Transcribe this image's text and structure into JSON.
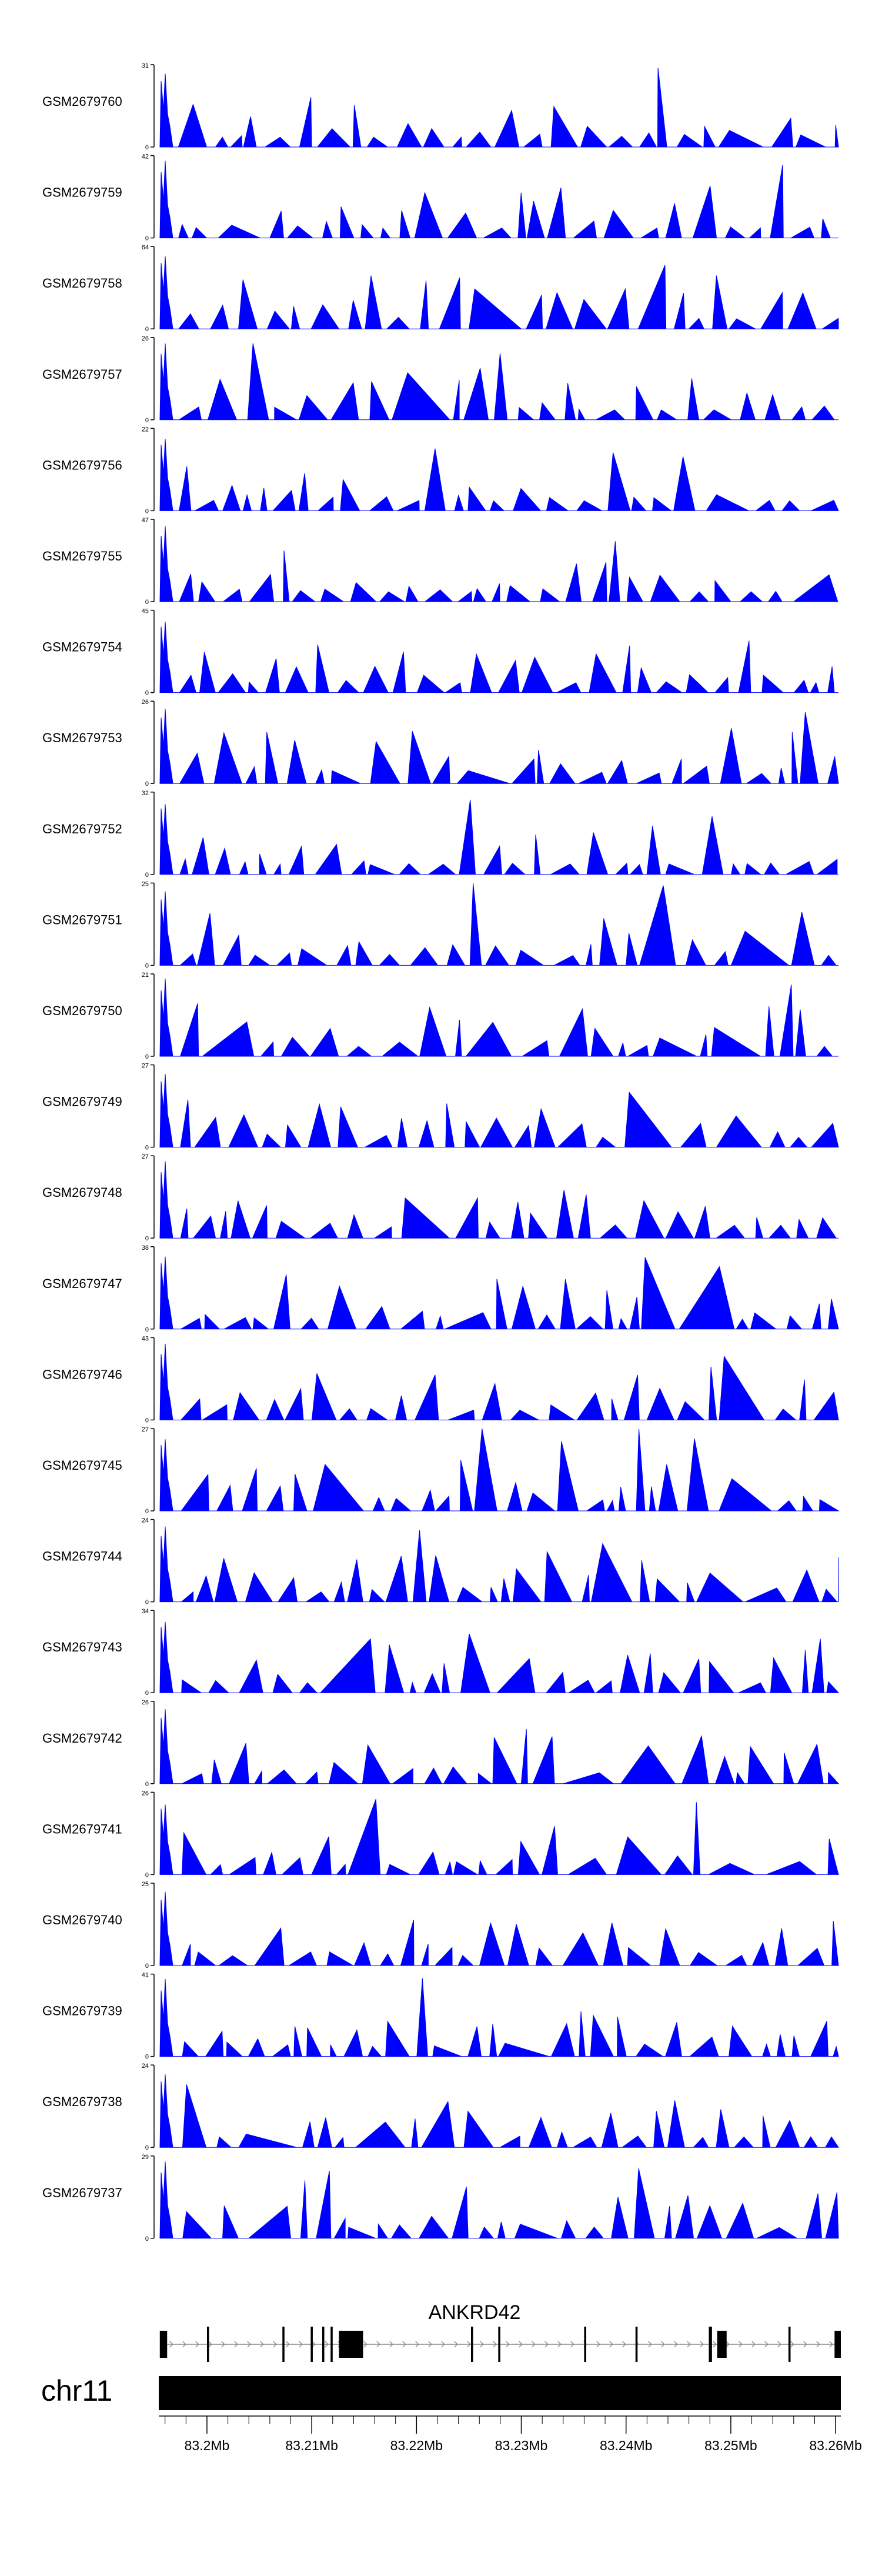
{
  "chart_data": {
    "type": "area",
    "title": "",
    "color": "#0000ff",
    "chromosome": "chr11",
    "gene": "ANKRD42",
    "x_unit": "Mb",
    "xlim": [
      83.1954,
      83.2605
    ],
    "axis_ticks": [
      {
        "value": 83.2,
        "label": "83.2Mb"
      },
      {
        "value": 83.21,
        "label": "83.21Mb"
      },
      {
        "value": 83.22,
        "label": "83.22Mb"
      },
      {
        "value": 83.23,
        "label": "83.23Mb"
      },
      {
        "value": 83.24,
        "label": "83.24Mb"
      },
      {
        "value": 83.25,
        "label": "83.25Mb"
      },
      {
        "value": 83.26,
        "label": "83.26Mb"
      }
    ],
    "series": [
      {
        "name": "GSM2679760",
        "ymax_label": "31",
        "ylim": [
          0,
          31
        ],
        "seed": 760
      },
      {
        "name": "GSM2679759",
        "ymax_label": "42",
        "ylim": [
          0,
          42
        ],
        "seed": 759
      },
      {
        "name": "GSM2679758",
        "ymax_label": "64",
        "ylim": [
          0,
          64
        ],
        "seed": 758
      },
      {
        "name": "GSM2679757",
        "ymax_label": "26",
        "ylim": [
          0,
          26
        ],
        "seed": 757
      },
      {
        "name": "GSM2679756",
        "ymax_label": "22",
        "ylim": [
          0,
          22
        ],
        "seed": 756
      },
      {
        "name": "GSM2679755",
        "ymax_label": "47",
        "ylim": [
          0,
          47
        ],
        "seed": 755
      },
      {
        "name": "GSM2679754",
        "ymax_label": "45",
        "ylim": [
          0,
          45
        ],
        "seed": 754
      },
      {
        "name": "GSM2679753",
        "ymax_label": "26",
        "ylim": [
          0,
          26
        ],
        "seed": 753
      },
      {
        "name": "GSM2679752",
        "ymax_label": "32",
        "ylim": [
          0,
          32
        ],
        "seed": 752
      },
      {
        "name": "GSM2679751",
        "ymax_label": "25",
        "ylim": [
          0,
          25
        ],
        "seed": 751
      },
      {
        "name": "GSM2679750",
        "ymax_label": "21",
        "ylim": [
          0,
          21
        ],
        "seed": 750
      },
      {
        "name": "GSM2679749",
        "ymax_label": "27",
        "ylim": [
          0,
          27
        ],
        "seed": 749
      },
      {
        "name": "GSM2679748",
        "ymax_label": "27",
        "ylim": [
          0,
          27
        ],
        "seed": 748
      },
      {
        "name": "GSM2679747",
        "ymax_label": "38",
        "ylim": [
          0,
          38
        ],
        "seed": 747
      },
      {
        "name": "GSM2679746",
        "ymax_label": "43",
        "ylim": [
          0,
          43
        ],
        "seed": 746
      },
      {
        "name": "GSM2679745",
        "ymax_label": "27",
        "ylim": [
          0,
          27
        ],
        "seed": 745
      },
      {
        "name": "GSM2679744",
        "ymax_label": "24",
        "ylim": [
          0,
          24
        ],
        "seed": 744
      },
      {
        "name": "GSM2679743",
        "ymax_label": "34",
        "ylim": [
          0,
          34
        ],
        "seed": 743
      },
      {
        "name": "GSM2679742",
        "ymax_label": "26",
        "ylim": [
          0,
          26
        ],
        "seed": 742
      },
      {
        "name": "GSM2679741",
        "ymax_label": "26",
        "ylim": [
          0,
          26
        ],
        "seed": 741
      },
      {
        "name": "GSM2679740",
        "ymax_label": "25",
        "ylim": [
          0,
          25
        ],
        "seed": 740
      },
      {
        "name": "GSM2679739",
        "ymax_label": "41",
        "ylim": [
          0,
          41
        ],
        "seed": 739
      },
      {
        "name": "GSM2679738",
        "ymax_label": "24",
        "ylim": [
          0,
          24
        ],
        "seed": 738
      },
      {
        "name": "GSM2679737",
        "ymax_label": "29",
        "ylim": [
          0,
          29
        ],
        "seed": 737
      }
    ],
    "gene_model": {
      "strand": "+",
      "start": 83.1955,
      "end": 83.2605,
      "exons": [
        [
          83.1955,
          83.1962
        ],
        [
          83.2,
          83.2002
        ],
        [
          83.2072,
          83.2074
        ],
        [
          83.2099,
          83.2101
        ],
        [
          83.211,
          83.2112
        ],
        [
          83.2118,
          83.212
        ],
        [
          83.2126,
          83.2149
        ],
        [
          83.2252,
          83.2254
        ],
        [
          83.2278,
          83.228
        ],
        [
          83.236,
          83.2362
        ],
        [
          83.2409,
          83.2411
        ],
        [
          83.2479,
          83.2482
        ],
        [
          83.2487,
          83.2496
        ],
        [
          83.2555,
          83.2557
        ],
        [
          83.2599,
          83.2605
        ]
      ]
    }
  }
}
